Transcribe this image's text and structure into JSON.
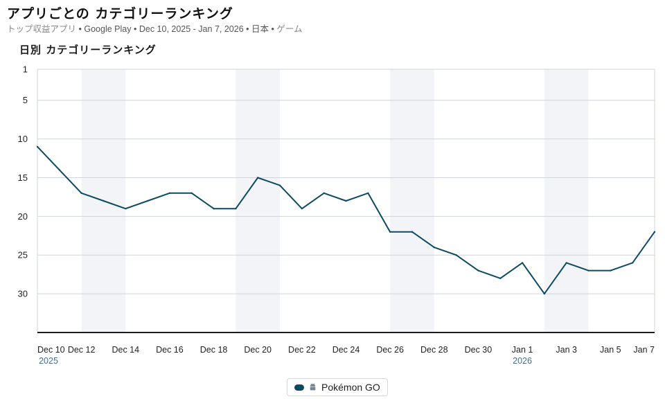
{
  "header": {
    "title": "アプリごとの カテゴリーランキング",
    "subtitle_chart": "トップ収益アプリ",
    "subtitle_store": "Google Play",
    "subtitle_dates": "Dec 10, 2025 - Jan 7, 2026",
    "subtitle_country": "日本",
    "subtitle_category": "ゲーム",
    "separator": "•"
  },
  "legend": {
    "label": "Pokémon GO",
    "icon": "android-icon"
  },
  "colors": {
    "line": "#0c4a63",
    "band": "#f2f4f7",
    "grid": "#cfd4da",
    "axis": "#1a1a1a"
  },
  "chart_data": {
    "type": "line",
    "title": "日別 カテゴリーランキング",
    "y_inverted": true,
    "ylim": [
      1,
      35
    ],
    "yticks": [
      1,
      5,
      10,
      15,
      20,
      25,
      30
    ],
    "x": [
      "2025-12-10",
      "2025-12-11",
      "2025-12-12",
      "2025-12-13",
      "2025-12-14",
      "2025-12-15",
      "2025-12-16",
      "2025-12-17",
      "2025-12-18",
      "2025-12-19",
      "2025-12-20",
      "2025-12-21",
      "2025-12-22",
      "2025-12-23",
      "2025-12-24",
      "2025-12-25",
      "2025-12-26",
      "2025-12-27",
      "2025-12-28",
      "2025-12-29",
      "2025-12-30",
      "2025-12-31",
      "2026-01-01",
      "2026-01-02",
      "2026-01-03",
      "2026-01-04",
      "2026-01-05",
      "2026-01-06",
      "2026-01-07"
    ],
    "xticks": [
      {
        "label": "Dec 10",
        "year": "2025"
      },
      {
        "label": "Dec 12",
        "year": ""
      },
      {
        "label": "Dec 14",
        "year": ""
      },
      {
        "label": "Dec 16",
        "year": ""
      },
      {
        "label": "Dec 18",
        "year": ""
      },
      {
        "label": "Dec 20",
        "year": ""
      },
      {
        "label": "Dec 22",
        "year": ""
      },
      {
        "label": "Dec 24",
        "year": ""
      },
      {
        "label": "Dec 26",
        "year": ""
      },
      {
        "label": "Dec 28",
        "year": ""
      },
      {
        "label": "Dec 30",
        "year": ""
      },
      {
        "label": "Jan 1",
        "year": "2026"
      },
      {
        "label": "Jan 3",
        "year": ""
      },
      {
        "label": "Jan 5",
        "year": ""
      },
      {
        "label": "Jan 7",
        "year": ""
      }
    ],
    "weekend_bands": [
      [
        "2025-12-12",
        "2025-12-14"
      ],
      [
        "2025-12-19",
        "2025-12-21"
      ],
      [
        "2025-12-26",
        "2025-12-28"
      ],
      [
        "2026-01-02",
        "2026-01-04"
      ]
    ],
    "series": [
      {
        "name": "Pokémon GO",
        "values": [
          11,
          14,
          17,
          18,
          19,
          18,
          17,
          17,
          19,
          19,
          15,
          16,
          19,
          17,
          18,
          17,
          22,
          22,
          24,
          25,
          27,
          28,
          26,
          30,
          26,
          27,
          27,
          26,
          22
        ]
      }
    ]
  }
}
